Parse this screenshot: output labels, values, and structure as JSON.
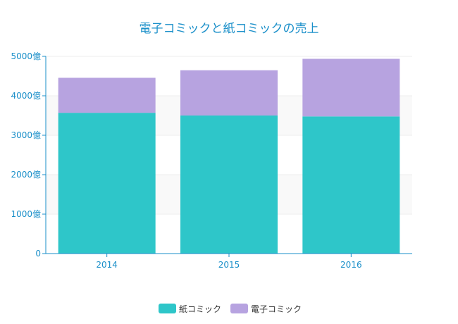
{
  "chart_data": {
    "type": "bar",
    "stacked": true,
    "title": "電子コミックと紙コミックの売上",
    "categories": [
      "2014",
      "2015",
      "2016"
    ],
    "series": [
      {
        "name": "紙コミック",
        "values": [
          3569,
          3500,
          3477
        ],
        "color": "#2ec6c9"
      },
      {
        "name": "電子コミック",
        "values": [
          887,
          1147,
          1460
        ],
        "color": "#b7a3e0"
      }
    ],
    "y_ticks": [
      0,
      1000,
      2000,
      3000,
      4000,
      5000
    ],
    "y_tick_labels": [
      "0",
      "1000億",
      "2000億",
      "3000億",
      "4000億",
      "5000億"
    ],
    "ylim": [
      0,
      5000
    ],
    "grid": true,
    "legend_position": "bottom-center"
  }
}
